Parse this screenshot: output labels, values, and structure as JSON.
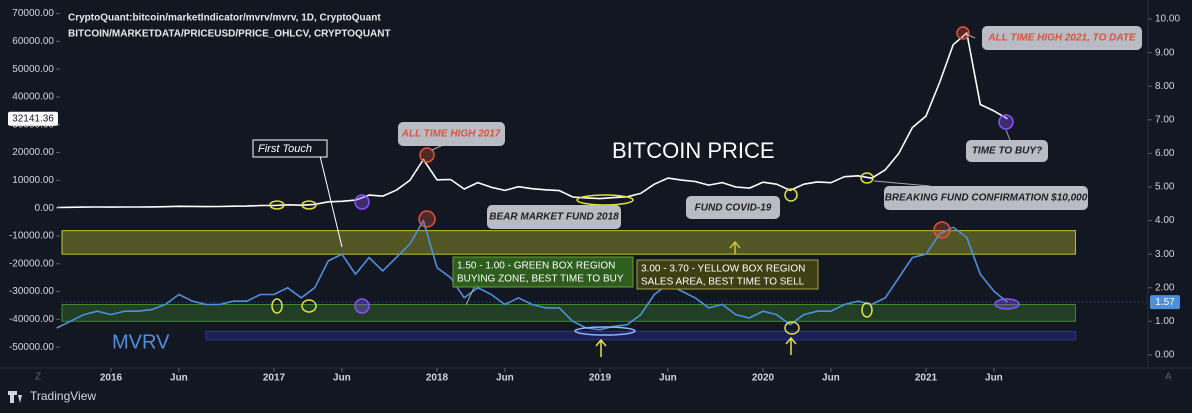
{
  "chart_data": {
    "type": "line",
    "header": [
      "CryptoQuant:bitcoin/marketIndicator/mvrv/mvrv, 1D, CryptoQuant",
      "BITCOIN/MARKETDATA/PRICEUSD/PRICE_OHLCV, CRYPTOQUANT"
    ],
    "x": [
      "2015-09",
      "2015-10",
      "2015-11",
      "2015-12",
      "2016-01",
      "2016-02",
      "2016-03",
      "2016-04",
      "2016-05",
      "2016-06",
      "2016-07",
      "2016-08",
      "2016-09",
      "2016-10",
      "2016-11",
      "2016-12",
      "2017-01",
      "2017-02",
      "2017-03",
      "2017-04",
      "2017-05",
      "2017-06",
      "2017-07",
      "2017-08",
      "2017-09",
      "2017-10",
      "2017-11",
      "2017-12",
      "2018-01",
      "2018-02",
      "2018-03",
      "2018-04",
      "2018-05",
      "2018-06",
      "2018-07",
      "2018-08",
      "2018-09",
      "2018-10",
      "2018-11",
      "2018-12",
      "2019-01",
      "2019-02",
      "2019-03",
      "2019-04",
      "2019-05",
      "2019-06",
      "2019-07",
      "2019-08",
      "2019-09",
      "2019-10",
      "2019-11",
      "2019-12",
      "2020-01",
      "2020-02",
      "2020-03",
      "2020-04",
      "2020-05",
      "2020-06",
      "2020-07",
      "2020-08",
      "2020-09",
      "2020-10",
      "2020-11",
      "2020-12",
      "2021-01",
      "2021-02",
      "2021-03",
      "2021-04",
      "2021-05",
      "2021-06",
      "2021-07"
    ],
    "series": [
      {
        "name": "BITCOIN PRICE",
        "color": "#ffffff",
        "values": [
          240,
          310,
          380,
          430,
          380,
          430,
          415,
          450,
          530,
          670,
          620,
          575,
          610,
          700,
          740,
          960,
          970,
          1190,
          1070,
          1350,
          2300,
          2480,
          2880,
          4700,
          4340,
          6470,
          10000,
          17500,
          10200,
          10300,
          6900,
          9200,
          7500,
          6400,
          7700,
          7000,
          6600,
          6300,
          4000,
          3700,
          3450,
          3800,
          4100,
          5300,
          8600,
          10800,
          10100,
          9600,
          8300,
          9200,
          7600,
          7200,
          9350,
          8600,
          6400,
          8600,
          9450,
          9140,
          11300,
          11650,
          10780,
          13800,
          19700,
          29000,
          33100,
          45200,
          58800,
          63000,
          37300,
          35000,
          32141.36
        ]
      },
      {
        "name": "MVRV",
        "color": "#4c8fdc",
        "axis": "y2",
        "values": [
          0.8,
          1.0,
          1.2,
          1.3,
          1.2,
          1.3,
          1.3,
          1.35,
          1.5,
          1.8,
          1.6,
          1.5,
          1.5,
          1.6,
          1.6,
          1.8,
          1.8,
          2.0,
          1.7,
          2.0,
          2.8,
          3.0,
          2.4,
          2.9,
          2.5,
          2.9,
          3.3,
          4.0,
          2.6,
          2.3,
          1.7,
          2.0,
          1.8,
          1.5,
          1.7,
          1.5,
          1.4,
          1.4,
          1.0,
          0.8,
          0.75,
          0.85,
          0.9,
          1.2,
          1.8,
          2.1,
          1.9,
          1.7,
          1.4,
          1.5,
          1.2,
          1.1,
          1.3,
          1.2,
          0.9,
          1.2,
          1.3,
          1.3,
          1.5,
          1.6,
          1.5,
          1.7,
          2.3,
          2.9,
          3.0,
          3.6,
          3.8,
          3.5,
          2.4,
          1.9,
          1.57
        ]
      }
    ],
    "ylim": [
      -57500,
      72000
    ],
    "yticks": [
      {
        "value": -50000,
        "label": "-50000.00"
      },
      {
        "value": -40000,
        "label": "-40000.00"
      },
      {
        "value": -30000,
        "label": "-30000.00"
      },
      {
        "value": -20000,
        "label": "-20000.00"
      },
      {
        "value": -10000,
        "label": "-10000.00"
      },
      {
        "value": 0,
        "label": "0.00"
      },
      {
        "value": 10000,
        "label": "10000.00"
      },
      {
        "value": 20000,
        "label": "20000.00"
      },
      {
        "value": 30000,
        "label": "30000.00"
      },
      {
        "value": 40000,
        "label": "40000.00"
      },
      {
        "value": 50000,
        "label": "50000.00"
      },
      {
        "value": 60000,
        "label": "60000.00"
      },
      {
        "value": 70000,
        "label": "70000.00"
      }
    ],
    "y2lim": [
      -0.39,
      10.33
    ],
    "y2ticks": [
      {
        "value": 0,
        "label": "0.00"
      },
      {
        "value": 1,
        "label": "1.00"
      },
      {
        "value": 2,
        "label": "2.00"
      },
      {
        "value": 3,
        "label": "3.00"
      },
      {
        "value": 4,
        "label": "4.00"
      },
      {
        "value": 5,
        "label": "5.00"
      },
      {
        "value": 6,
        "label": "6.00"
      },
      {
        "value": 7,
        "label": "7.00"
      },
      {
        "value": 8,
        "label": "8.00"
      },
      {
        "value": 9,
        "label": "9.00"
      },
      {
        "value": 10,
        "label": "10.00"
      }
    ],
    "xticks": [
      {
        "value": "2016-01",
        "label": "2016"
      },
      {
        "value": "2016-06",
        "label": "Jun"
      },
      {
        "value": "2017-01",
        "label": "2017"
      },
      {
        "value": "2017-06",
        "label": "Jun"
      },
      {
        "value": "2018-01",
        "label": "2018"
      },
      {
        "value": "2018-06",
        "label": "Jun"
      },
      {
        "value": "2019-01",
        "label": "2019"
      },
      {
        "value": "2019-06",
        "label": "Jun"
      },
      {
        "value": "2020-01",
        "label": "2020"
      },
      {
        "value": "2020-06",
        "label": "Jun"
      },
      {
        "value": "2021-01",
        "label": "2021"
      },
      {
        "value": "2021-06",
        "label": "Jun"
      }
    ],
    "zones": [
      {
        "from": 3.0,
        "to": 3.7,
        "x": [
          "2015-09",
          "2021-12"
        ],
        "color": "#c8c828"
      },
      {
        "from": 1.0,
        "to": 1.5,
        "x": [
          "2015-09",
          "2021-12"
        ],
        "color": "#3f8a2a"
      },
      {
        "from": 0.45,
        "to": 0.7,
        "x": [
          "2016-08",
          "2021-12"
        ],
        "color": "#2b2fa8"
      }
    ],
    "annotations": {
      "first_touch": "First Touch",
      "ath_2017": "ALL TIME HIGH 2017",
      "price_title": "BITCOIN PRICE",
      "bear_market": "BEAR MARKET FUND 2018",
      "covid": "FUND COVID-19",
      "breaking": "BREAKING FUND CONFIRMATION $10,000",
      "ath_2021": "ALL TIME HIGH 2021, TO DATE",
      "time_to_buy": "TIME TO BUY?",
      "green_box": [
        "1.50 - 1.00 - GREEN BOX REGION",
        "BUYING ZONE, BEST TIME TO BUY"
      ],
      "yellow_box": [
        "3.00 - 3.70 - YELLOW BOX REGION",
        "SALES AREA, BEST TIME TO SELL"
      ],
      "mvrv_title": "MVRV"
    },
    "corner_left": "Z",
    "corner_right": "A",
    "brand": "TradingView"
  }
}
